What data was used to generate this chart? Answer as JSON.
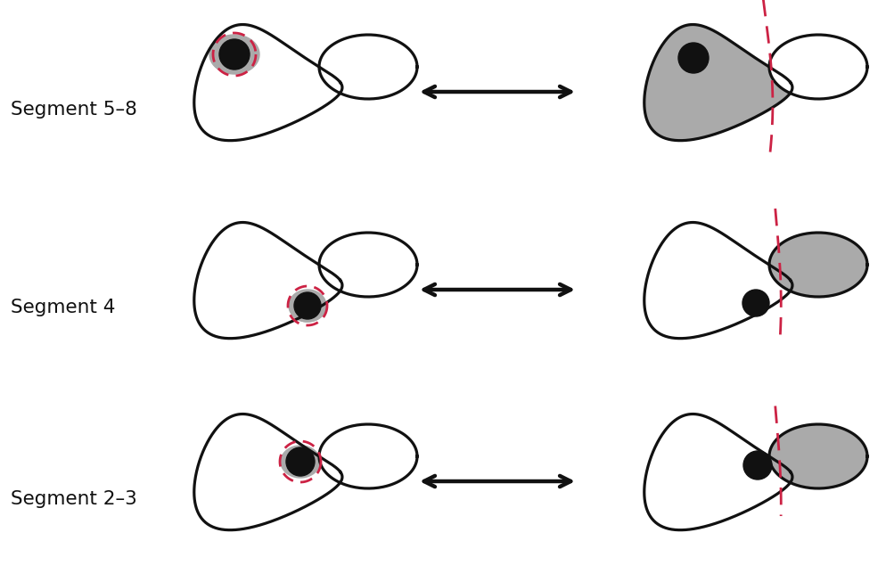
{
  "background_color": "#ffffff",
  "outline_color": "#111111",
  "liver_fill": "#ffffff",
  "gray_fill": "#aaaaaa",
  "tumor_fill": "#111111",
  "dash_color": "#cc2244",
  "arrow_color": "#111111",
  "labels": [
    "Segment 5–8",
    "Segment 4",
    "Segment 2–3"
  ],
  "label_fontsize": 15.5,
  "lw": 2.3,
  "arrow_lw": 3.2,
  "arrow_ms": 22
}
